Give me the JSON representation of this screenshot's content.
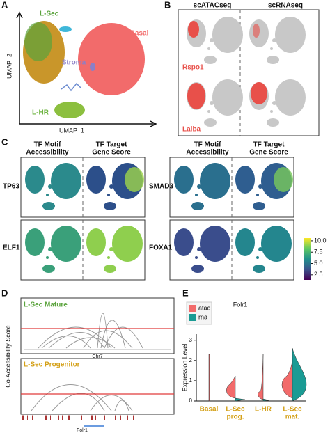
{
  "panels": {
    "A": {
      "label": "A",
      "clusters": [
        "L-Sec",
        "Basal",
        "Stroma",
        "L-HR"
      ],
      "x_label": "UMAP_1",
      "y_label": "UMAP_2"
    },
    "B": {
      "label": "B",
      "columns": [
        "scATACseq",
        "scRNAseq"
      ],
      "genes": [
        "Rspo1",
        "Lalba"
      ]
    },
    "C": {
      "label": "C",
      "columns": [
        [
          "TF Motif",
          "Accessibility"
        ],
        [
          "TF Target",
          "Gene Score"
        ]
      ],
      "genes": [
        "TP63",
        "ELF1",
        "SMAD3",
        "FOXA1"
      ],
      "colorbar": {
        "clim": [
          1.4,
          10.6
        ],
        "ticks": [
          {
            "value": 10,
            "label": "10.0"
          },
          7.5,
          {
            "value": 5,
            "label": "5.0"
          },
          2.5
        ]
      }
    },
    "D": {
      "label": "D",
      "y_label": "Co-Accessibility Score",
      "tracks": [
        "L-Sec Mature",
        "L-Sec Progenitor"
      ],
      "chromosome": "Chr7",
      "gene": "Folr1"
    },
    "E": {
      "label": "E",
      "title": "Folr1",
      "y_label": "Expression Level",
      "legend": [
        {
          "name": "atac",
          "color": "#f26b6b"
        },
        {
          "name": "rna",
          "color": "#1a9b94"
        }
      ],
      "categories": [
        [
          "Basal"
        ],
        [
          "L-Sec",
          "prog."
        ],
        [
          "L-HR"
        ],
        [
          "L-Sec",
          "mat."
        ]
      ],
      "ylim": [
        0,
        3.3
      ],
      "yticks": [
        0,
        1,
        2,
        3
      ]
    }
  }
}
